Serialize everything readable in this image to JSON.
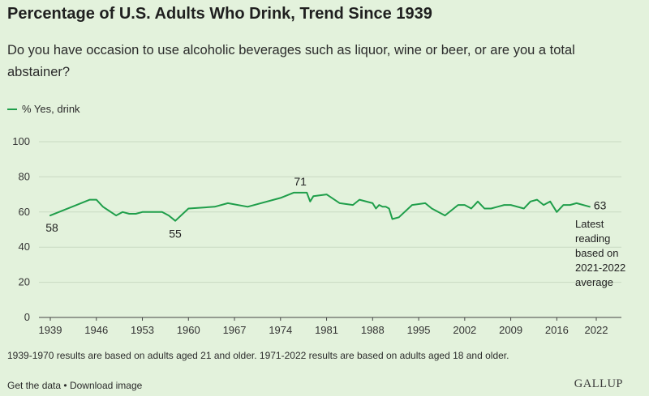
{
  "colors": {
    "line": "#1f9e4a",
    "grid": "#c9d9c2",
    "text": "#222222",
    "background": "#e3f2dc"
  },
  "footer": {
    "note": "1939-1970 results are based on adults aged 21 and older. 1971-2022 results are based on adults aged 18 and older.",
    "get_data": "Get the data",
    "separator": "•",
    "download": "Download image",
    "brand": "GALLUP"
  },
  "chart_data": {
    "type": "line",
    "title": "Percentage of U.S. Adults Who Drink, Trend Since 1939",
    "subtitle": "Do you have occasion to use alcoholic beverages such as liquor, wine or beer, or are you a total abstainer?",
    "xlabel": "",
    "ylabel": "",
    "xlim": [
      1939,
      2022
    ],
    "ylim": [
      0,
      100
    ],
    "yticks": [
      0,
      20,
      40,
      60,
      80,
      100
    ],
    "xticks": [
      1939,
      1946,
      1953,
      1960,
      1967,
      1974,
      1981,
      1988,
      1995,
      2002,
      2009,
      2016,
      2022
    ],
    "grid": true,
    "legend": "top-left",
    "series": [
      {
        "name": "% Yes, drink",
        "x": [
          1939,
          1945,
          1946,
          1947,
          1949,
          1950,
          1951,
          1952,
          1953,
          1956,
          1957,
          1958,
          1960,
          1964,
          1966,
          1969,
          1974,
          1976,
          1977,
          1978,
          1978.5,
          1979,
          1981,
          1983,
          1985,
          1986,
          1988,
          1988.5,
          1989,
          1989.5,
          1990,
          1990.5,
          1991,
          1992,
          1994,
          1996,
          1997,
          1999,
          2000,
          2001,
          2002,
          2003,
          2004,
          2005,
          2006,
          2007,
          2008,
          2009,
          2011,
          2012,
          2013,
          2014,
          2015,
          2016,
          2017,
          2018,
          2019,
          2021
        ],
        "values": [
          58,
          67,
          67,
          63,
          58,
          60,
          59,
          59,
          60,
          60,
          58,
          55,
          62,
          63,
          65,
          63,
          68,
          71,
          71,
          71,
          66,
          69,
          70,
          65,
          64,
          67,
          65,
          62,
          64,
          63,
          63,
          62,
          56,
          57,
          64,
          65,
          62,
          58,
          61,
          64,
          64,
          62,
          66,
          62,
          62,
          63,
          64,
          64,
          62,
          66,
          67,
          64,
          66,
          60,
          64,
          64,
          65,
          63
        ]
      }
    ],
    "annotations": [
      {
        "label": "58",
        "x": 1939,
        "y": 58
      },
      {
        "label": "55",
        "x": 1958,
        "y": 55
      },
      {
        "label": "71",
        "x": 1977,
        "y": 71
      },
      {
        "label": "63",
        "x": 2021,
        "y": 63
      }
    ],
    "note_lines": [
      "Latest",
      "reading",
      "based on",
      "2021-2022",
      "average"
    ]
  }
}
